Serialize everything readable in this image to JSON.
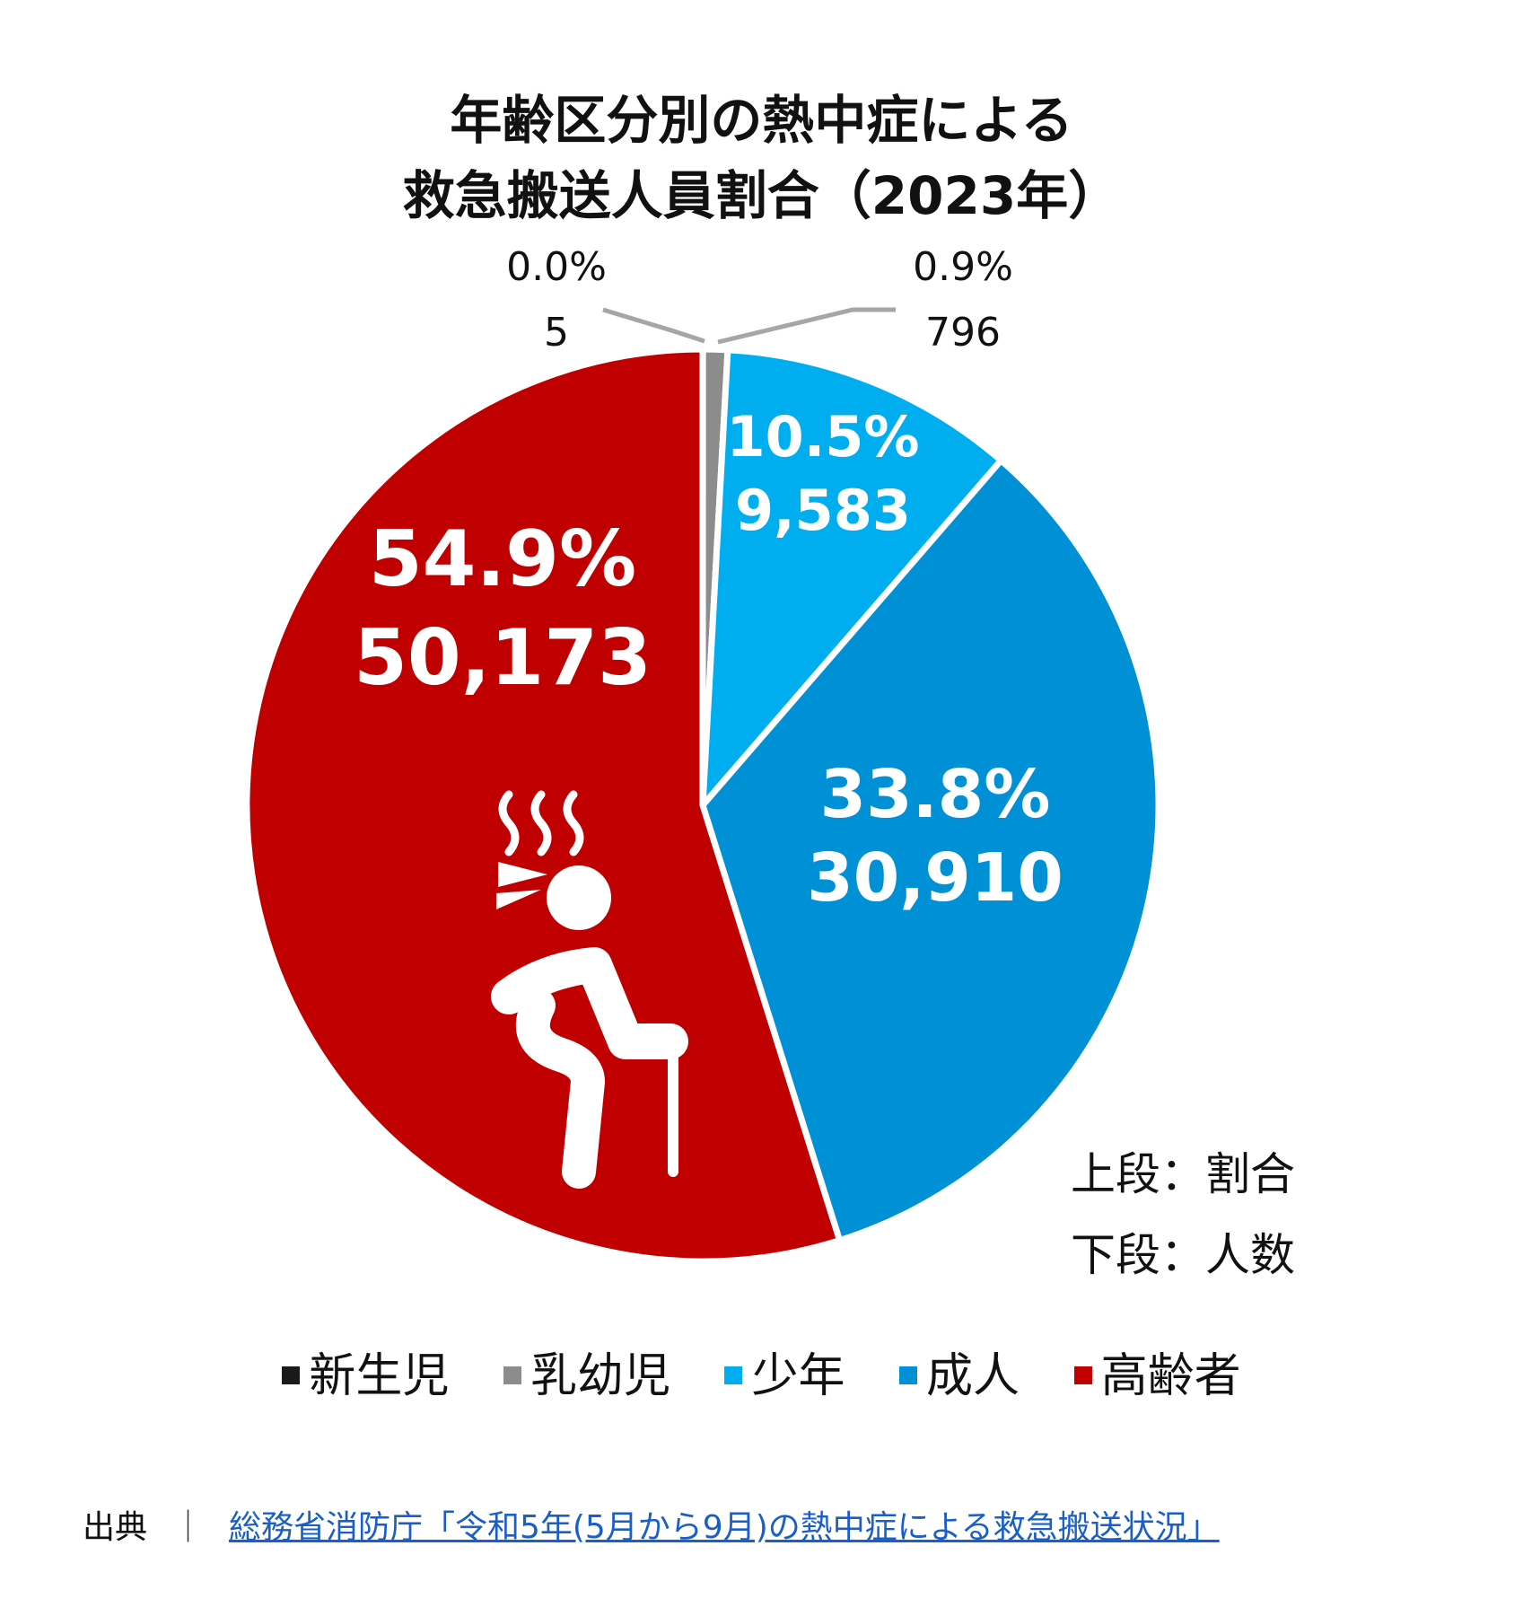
{
  "title": {
    "line1": "年齢区分別の熱中症による",
    "line2": "救急搬送人員割合（2023年）"
  },
  "chart_data": {
    "type": "pie",
    "title": "年齢区分別の熱中症による救急搬送人員割合（2023年）",
    "slices": [
      {
        "name": "新生児",
        "percent_label": "0.0%",
        "count_label": "5",
        "value": 5,
        "color": "#1a1a1a"
      },
      {
        "name": "乳幼児",
        "percent_label": "0.9%",
        "count_label": "796",
        "value": 796,
        "color": "#8c8c8c"
      },
      {
        "name": "少年",
        "percent_label": "10.5%",
        "count_label": "9,583",
        "value": 9583,
        "color": "#00aeef"
      },
      {
        "name": "成人",
        "percent_label": "33.8%",
        "count_label": "30,910",
        "value": 30910,
        "color": "#0090d6"
      },
      {
        "name": "高齢者",
        "percent_label": "54.9%",
        "count_label": "50,173",
        "value": 50173,
        "color": "#c00000"
      }
    ],
    "start_angle_deg": 0,
    "direction": "clockwise"
  },
  "legend": {
    "items": [
      {
        "label": "新生児",
        "color": "#1a1a1a"
      },
      {
        "label": "乳幼児",
        "color": "#8c8c8c"
      },
      {
        "label": "少年",
        "color": "#00aeef"
      },
      {
        "label": "成人",
        "color": "#0090d6"
      },
      {
        "label": "高齢者",
        "color": "#c00000"
      }
    ]
  },
  "note": {
    "upper": "上段：割合",
    "lower": "下段：人数"
  },
  "source": {
    "label": "出典",
    "separator": "｜",
    "link_text": "総務省消防庁「令和5年(5月から9月)の熱中症による救急搬送状況」"
  },
  "icons": {
    "elderly": "elderly-person-with-cane-icon"
  }
}
